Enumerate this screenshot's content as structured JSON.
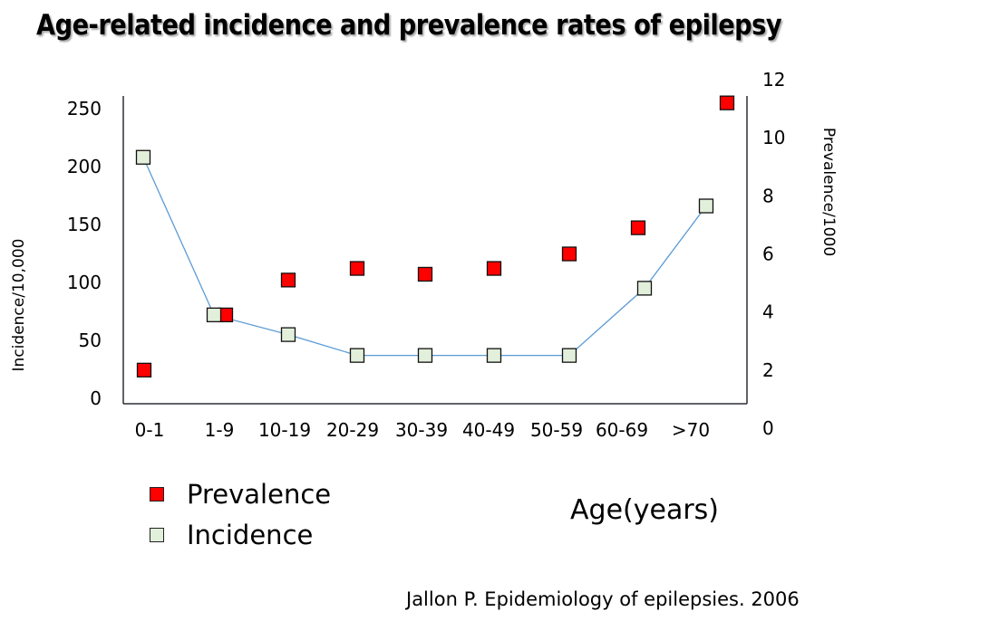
{
  "slide": {
    "title": "Age-related incidence and prevalence rates of epilepsy",
    "source": "Jallon P. Epidemiology of epilepsies. 2006"
  },
  "chart_data": {
    "type": "scatter",
    "title": "Age-related incidence and prevalence rates of epilepsy",
    "xlabel": "Age(years)",
    "ylabel": "Incidence/10,000",
    "y2label": "Prevalence/1000",
    "categories": [
      "0-1",
      "1-9",
      "10-19",
      "20-29",
      "30-39",
      "40-49",
      "50-59",
      "60-69",
      ">70"
    ],
    "ylim": [
      0,
      250
    ],
    "yticks": [
      0,
      50,
      100,
      150,
      200,
      250
    ],
    "y2lim": [
      0,
      12
    ],
    "y2ticks": [
      0,
      2,
      4,
      6,
      8,
      10,
      12
    ],
    "grid": false,
    "legend_position": "bottom-left",
    "series": [
      {
        "name": "Prevalence",
        "axis": "right",
        "marker": "square",
        "color": "#ff0000",
        "line": false,
        "values": [
          2.0,
          3.9,
          5.1,
          5.5,
          5.3,
          5.5,
          6.0,
          6.9,
          11.2
        ]
      },
      {
        "name": "Incidence",
        "axis": "left",
        "marker": "square",
        "color": "#e2efda",
        "line_color": "#5b9bd5",
        "line": true,
        "values": [
          208,
          72,
          55,
          37,
          37,
          37,
          37,
          95,
          166
        ]
      }
    ]
  }
}
